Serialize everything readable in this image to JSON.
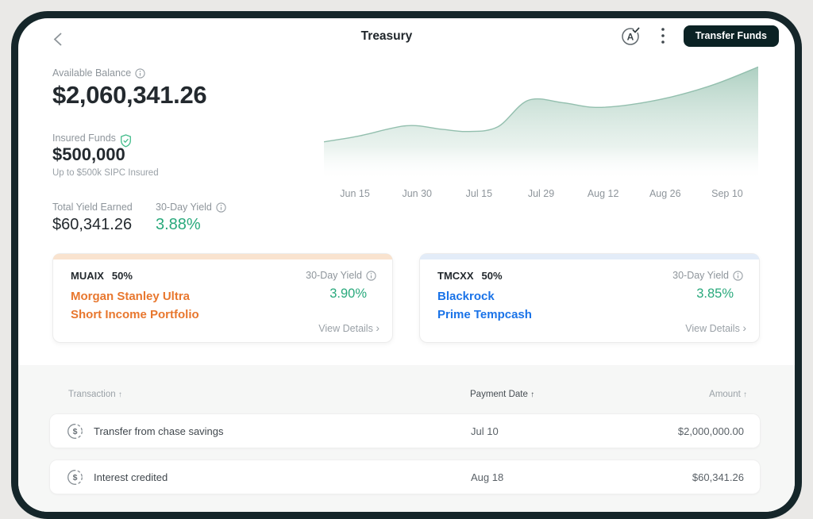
{
  "header": {
    "title": "Treasury",
    "transfer_button": "Transfer Funds"
  },
  "icons": {
    "sort_asc": "↑",
    "chevron_right": "›",
    "dollar": "$",
    "avatar_letter": "A"
  },
  "summary": {
    "available": {
      "label": "Available Balance",
      "value": "$2,060,341.26"
    },
    "insured": {
      "label": "Insured Funds",
      "value": "$500,000",
      "note": "Up to $500k SIPC Insured"
    },
    "total_yield": {
      "label": "Total Yield Earned",
      "value": "$60,341.26"
    },
    "thirty_day_yield": {
      "label": "30-Day Yield",
      "value": "3.88%"
    }
  },
  "chart_data": {
    "type": "area",
    "categories": [
      "Jun 15",
      "Jun 30",
      "Jul 15",
      "Jul 29",
      "Aug 12",
      "Aug 26",
      "Sep 10"
    ],
    "values_at_labels_pct": [
      38,
      48,
      44,
      70,
      65,
      72,
      88
    ],
    "points": [
      [
        0,
        34
      ],
      [
        8,
        39
      ],
      [
        19,
        48
      ],
      [
        27,
        45
      ],
      [
        33,
        43
      ],
      [
        40,
        47
      ],
      [
        47,
        70
      ],
      [
        55,
        68
      ],
      [
        62,
        64
      ],
      [
        70,
        66
      ],
      [
        80,
        73
      ],
      [
        90,
        84
      ],
      [
        100,
        99
      ]
    ],
    "title": "",
    "xlabel": "",
    "ylabel": "",
    "grid": false,
    "legend": false,
    "note": "y-axis unlabeled; values are percent of plot height (balance growth curve)"
  },
  "funds": [
    {
      "ticker": "MUAIX",
      "allocation": "50%",
      "name_line1": "Morgan Stanley Ultra",
      "name_line2": "Short Income Portfolio",
      "yield_label": "30-Day Yield",
      "yield_value": "3.90%",
      "details_label": "View Details",
      "name_color": "#E8772E",
      "accent_color": "#F9E3CF"
    },
    {
      "ticker": "TMCXX",
      "allocation": "50%",
      "name_line1": "Blackrock",
      "name_line2": "Prime Tempcash",
      "yield_label": "30-Day Yield",
      "yield_value": "3.85%",
      "details_label": "View Details",
      "name_color": "#1A73E8",
      "accent_color": "#E3ECF8"
    }
  ],
  "transactions": {
    "columns": [
      "Transaction",
      "Payment Date",
      "Amount"
    ],
    "rows": [
      {
        "name": "Transfer from chase savings",
        "date": "Jul 10",
        "amount": "$2,000,000.00"
      },
      {
        "name": "Interest credited",
        "date": "Aug 18",
        "amount": "$60,341.26"
      }
    ]
  },
  "colors": {
    "yield_green": "#29A97C",
    "fund1_orange": "#E8772E",
    "fund2_blue": "#1A73E8",
    "fund1_accent": "#F9E3CF",
    "fund2_accent": "#E3ECF8",
    "chart_fill_top": "#A9CDBE",
    "chart_line": "#93BFAE",
    "button_bg": "#0B2224",
    "frame": "#15262A"
  }
}
